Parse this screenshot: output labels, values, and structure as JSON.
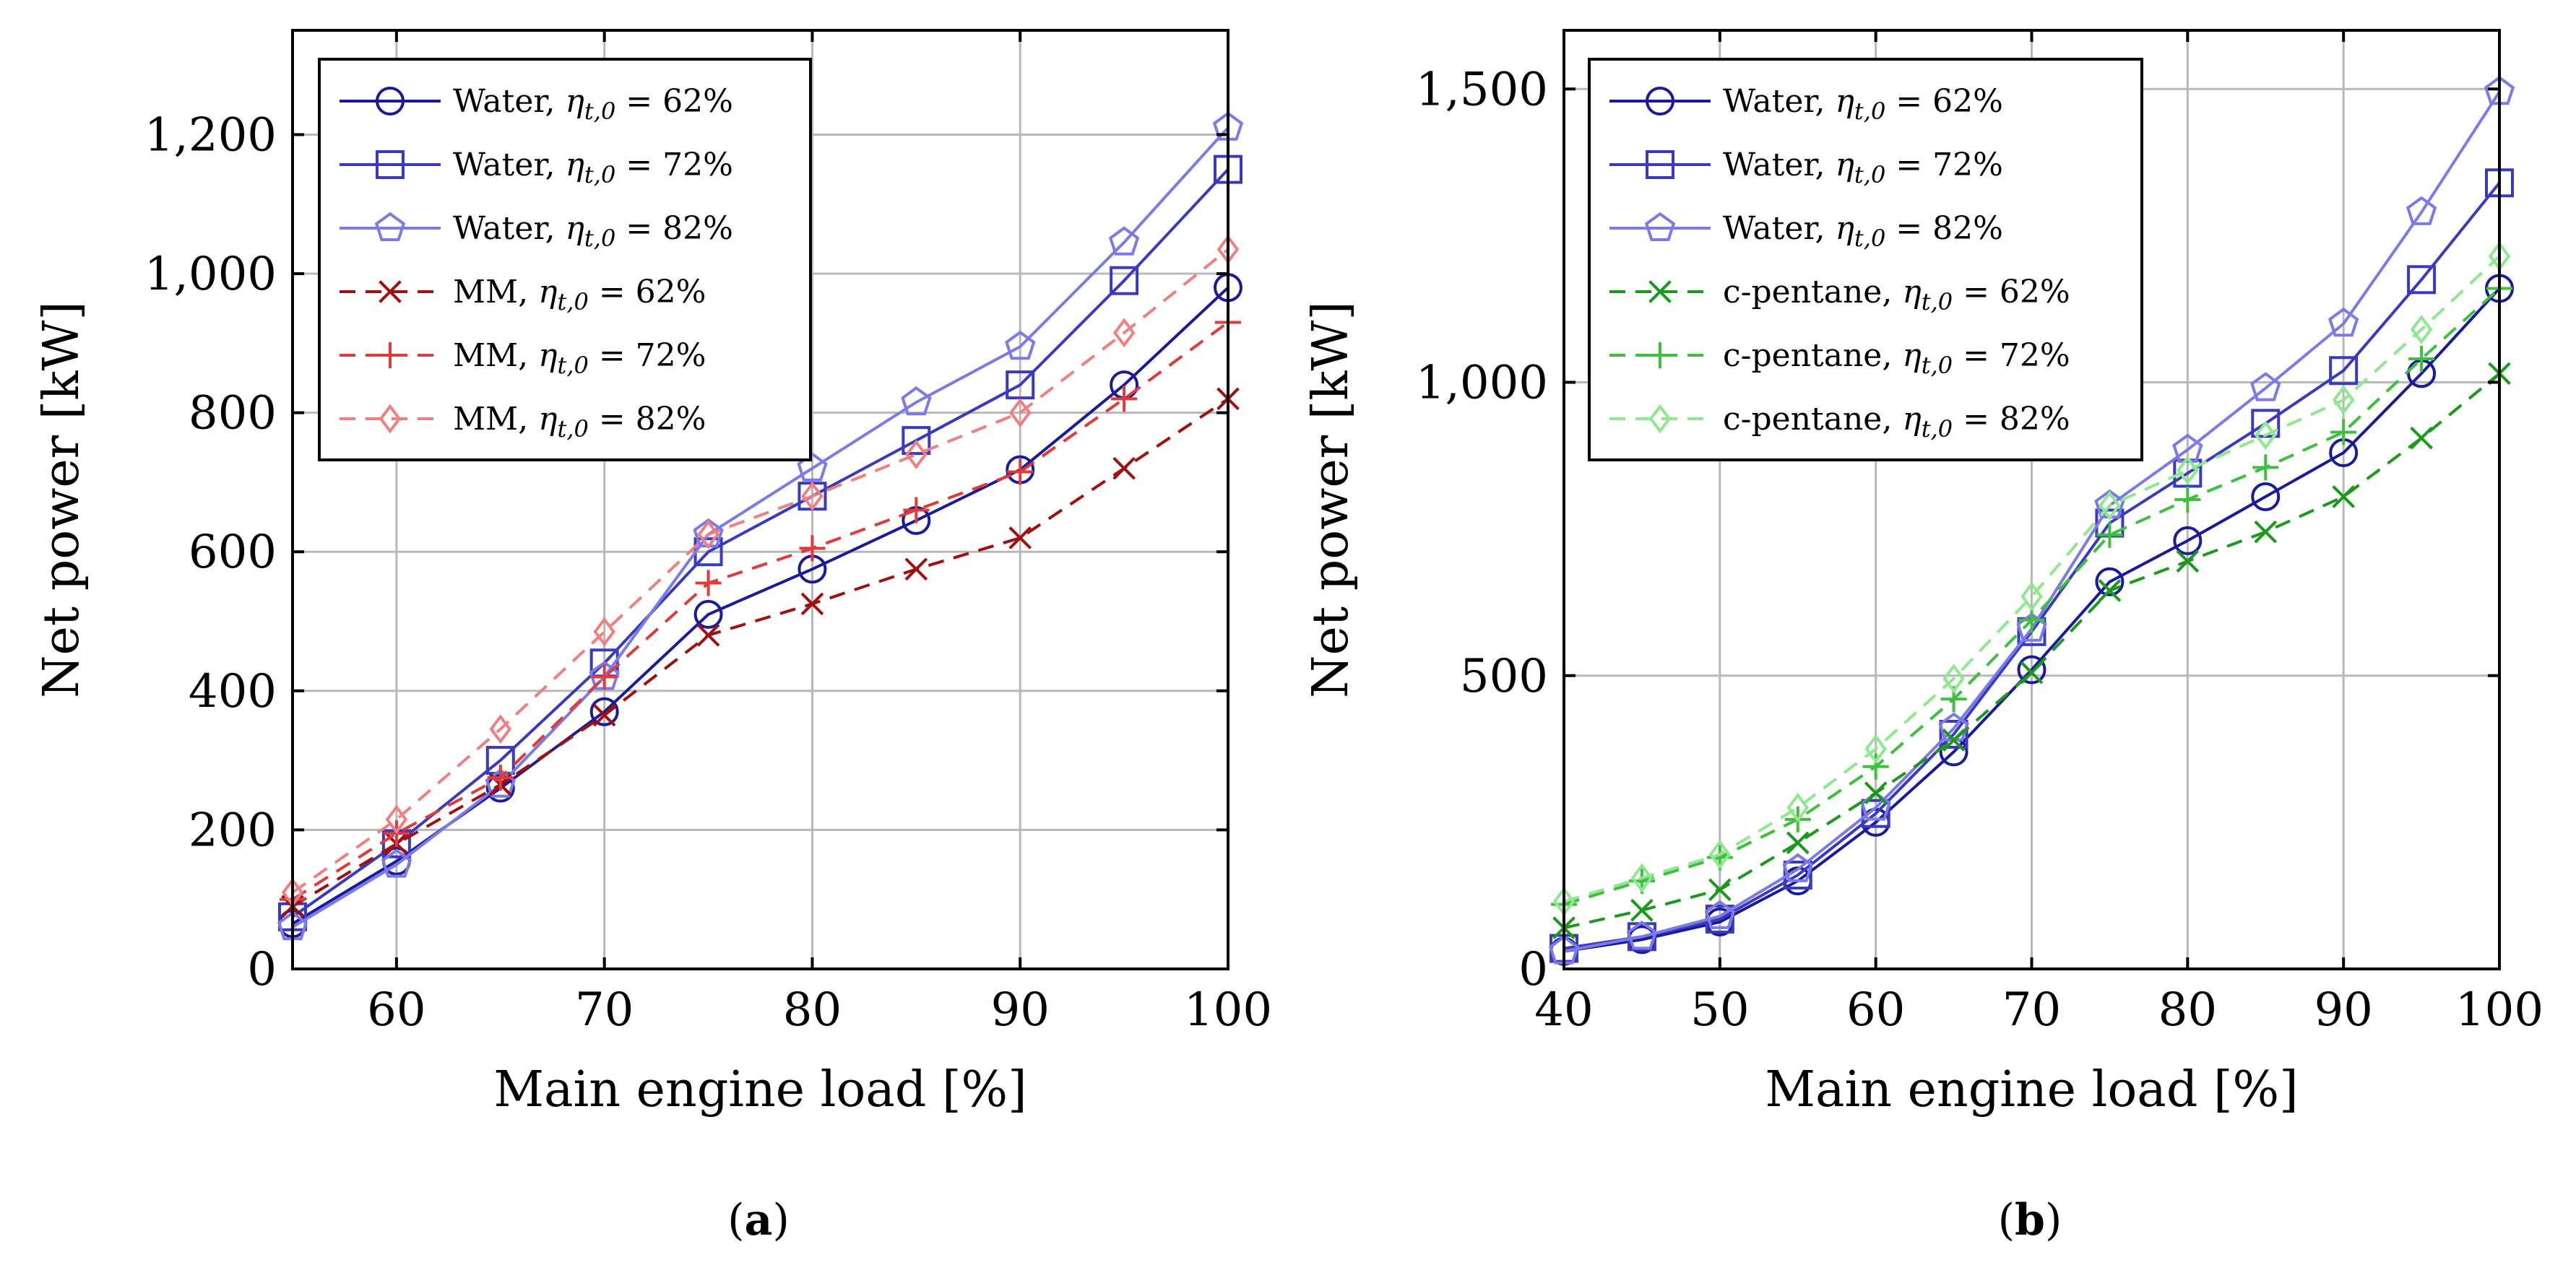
{
  "chart_data": [
    {
      "type": "line",
      "caption": "(a)",
      "xlabel": "Main engine load [%]",
      "ylabel": "Net power [kW]",
      "xlim": [
        55,
        100
      ],
      "ylim": [
        0,
        1350
      ],
      "xticks": [
        60,
        70,
        80,
        90,
        100
      ],
      "xtick_labels": [
        "60",
        "70",
        "80",
        "90",
        "100"
      ],
      "yticks": [
        0,
        200,
        400,
        600,
        800,
        1000,
        1200
      ],
      "ytick_labels": [
        "0",
        "200",
        "400",
        "600",
        "800",
        "1,000",
        "1,200"
      ],
      "grid": true,
      "legend_position": "top-left",
      "x": [
        55,
        60,
        65,
        70,
        75,
        80,
        85,
        90,
        95,
        100
      ],
      "series": [
        {
          "name": "Water, ηt,0 = 62%",
          "label_prefix": "Water,",
          "label_eq": "= 62%",
          "color": "#1a1a9c",
          "marker": "circle",
          "dash": false,
          "values": [
            65,
            155,
            260,
            370,
            510,
            575,
            645,
            718,
            840,
            980
          ]
        },
        {
          "name": "Water, ηt,0 = 72%",
          "label_prefix": "Water,",
          "label_eq": "= 72%",
          "color": "#3a3ac0",
          "marker": "square",
          "dash": false,
          "values": [
            75,
            180,
            300,
            440,
            600,
            680,
            760,
            840,
            990,
            1150
          ]
        },
        {
          "name": "Water, ηt,0 = 82%",
          "label_prefix": "Water,",
          "label_eq": "= 82%",
          "color": "#7a7ae8",
          "marker": "pentagon",
          "dash": false,
          "values": [
            60,
            150,
            265,
            420,
            625,
            720,
            815,
            895,
            1045,
            1210
          ]
        },
        {
          "name": "MM, ηt,0 = 62%",
          "label_prefix": "MM,",
          "label_eq": "= 62%",
          "color": "#a01010",
          "marker": "x",
          "dash": true,
          "values": [
            90,
            180,
            265,
            365,
            480,
            525,
            575,
            620,
            720,
            820
          ]
        },
        {
          "name": "MM, ηt,0 = 72%",
          "label_prefix": "MM,",
          "label_eq": "= 72%",
          "color": "#e03a3a",
          "marker": "plus",
          "dash": true,
          "values": [
            100,
            195,
            275,
            420,
            555,
            605,
            660,
            715,
            820,
            930
          ]
        },
        {
          "name": "MM, ηt,0 = 82%",
          "label_prefix": "MM,",
          "label_eq": "= 82%",
          "color": "#f08080",
          "marker": "diamond",
          "dash": true,
          "values": [
            110,
            215,
            345,
            485,
            625,
            680,
            740,
            800,
            915,
            1035
          ]
        }
      ]
    },
    {
      "type": "line",
      "caption": "(b)",
      "xlabel": "Main engine load [%]",
      "ylabel": "Net power [kW]",
      "xlim": [
        40,
        100
      ],
      "ylim": [
        0,
        1600
      ],
      "xticks": [
        40,
        50,
        60,
        70,
        80,
        90,
        100
      ],
      "xtick_labels": [
        "40",
        "50",
        "60",
        "70",
        "80",
        "90",
        "100"
      ],
      "yticks": [
        0,
        500,
        1000,
        1500
      ],
      "ytick_labels": [
        "0",
        "500",
        "1,000",
        "1,500"
      ],
      "grid": true,
      "legend_position": "top-left",
      "x": [
        40,
        45,
        50,
        55,
        60,
        65,
        70,
        75,
        80,
        85,
        90,
        95,
        100
      ],
      "series": [
        {
          "name": "Water, ηt,0 = 62%",
          "label_prefix": "Water,",
          "label_eq": "= 62%",
          "color": "#1a1a9c",
          "marker": "circle",
          "dash": false,
          "values": [
            30,
            50,
            80,
            150,
            250,
            370,
            510,
            660,
            730,
            805,
            880,
            1015,
            1160
          ]
        },
        {
          "name": "Water, ηt,0 = 72%",
          "label_prefix": "Water,",
          "label_eq": "= 72%",
          "color": "#3a3ac0",
          "marker": "square",
          "dash": false,
          "values": [
            35,
            55,
            85,
            160,
            265,
            400,
            575,
            760,
            845,
            930,
            1020,
            1175,
            1340
          ]
        },
        {
          "name": "Water, ηt,0 = 82%",
          "label_prefix": "Water,",
          "label_eq": "= 82%",
          "color": "#7a7ae8",
          "marker": "pentagon",
          "dash": false,
          "values": [
            30,
            55,
            90,
            170,
            275,
            410,
            580,
            790,
            885,
            990,
            1100,
            1290,
            1495
          ]
        },
        {
          "name": "c-pentane, ηt,0 = 62%",
          "label_prefix": "c-pentane,",
          "label_eq": "= 62%",
          "color": "#1a9a1a",
          "marker": "x",
          "dash": true,
          "values": [
            70,
            100,
            135,
            215,
            300,
            390,
            505,
            645,
            695,
            745,
            805,
            905,
            1015
          ]
        },
        {
          "name": "c-pentane, ηt,0 = 72%",
          "label_prefix": "c-pentane,",
          "label_eq": "= 72%",
          "color": "#3ec03e",
          "marker": "plus",
          "dash": true,
          "values": [
            110,
            150,
            190,
            255,
            345,
            460,
            595,
            740,
            800,
            855,
            915,
            1040,
            1160
          ]
        },
        {
          "name": "c-pentane, ηt,0 = 82%",
          "label_prefix": "c-pentane,",
          "label_eq": "= 82%",
          "color": "#8ee88e",
          "marker": "diamond",
          "dash": true,
          "values": [
            115,
            155,
            195,
            275,
            375,
            495,
            635,
            790,
            850,
            910,
            970,
            1090,
            1215
          ]
        }
      ]
    }
  ]
}
